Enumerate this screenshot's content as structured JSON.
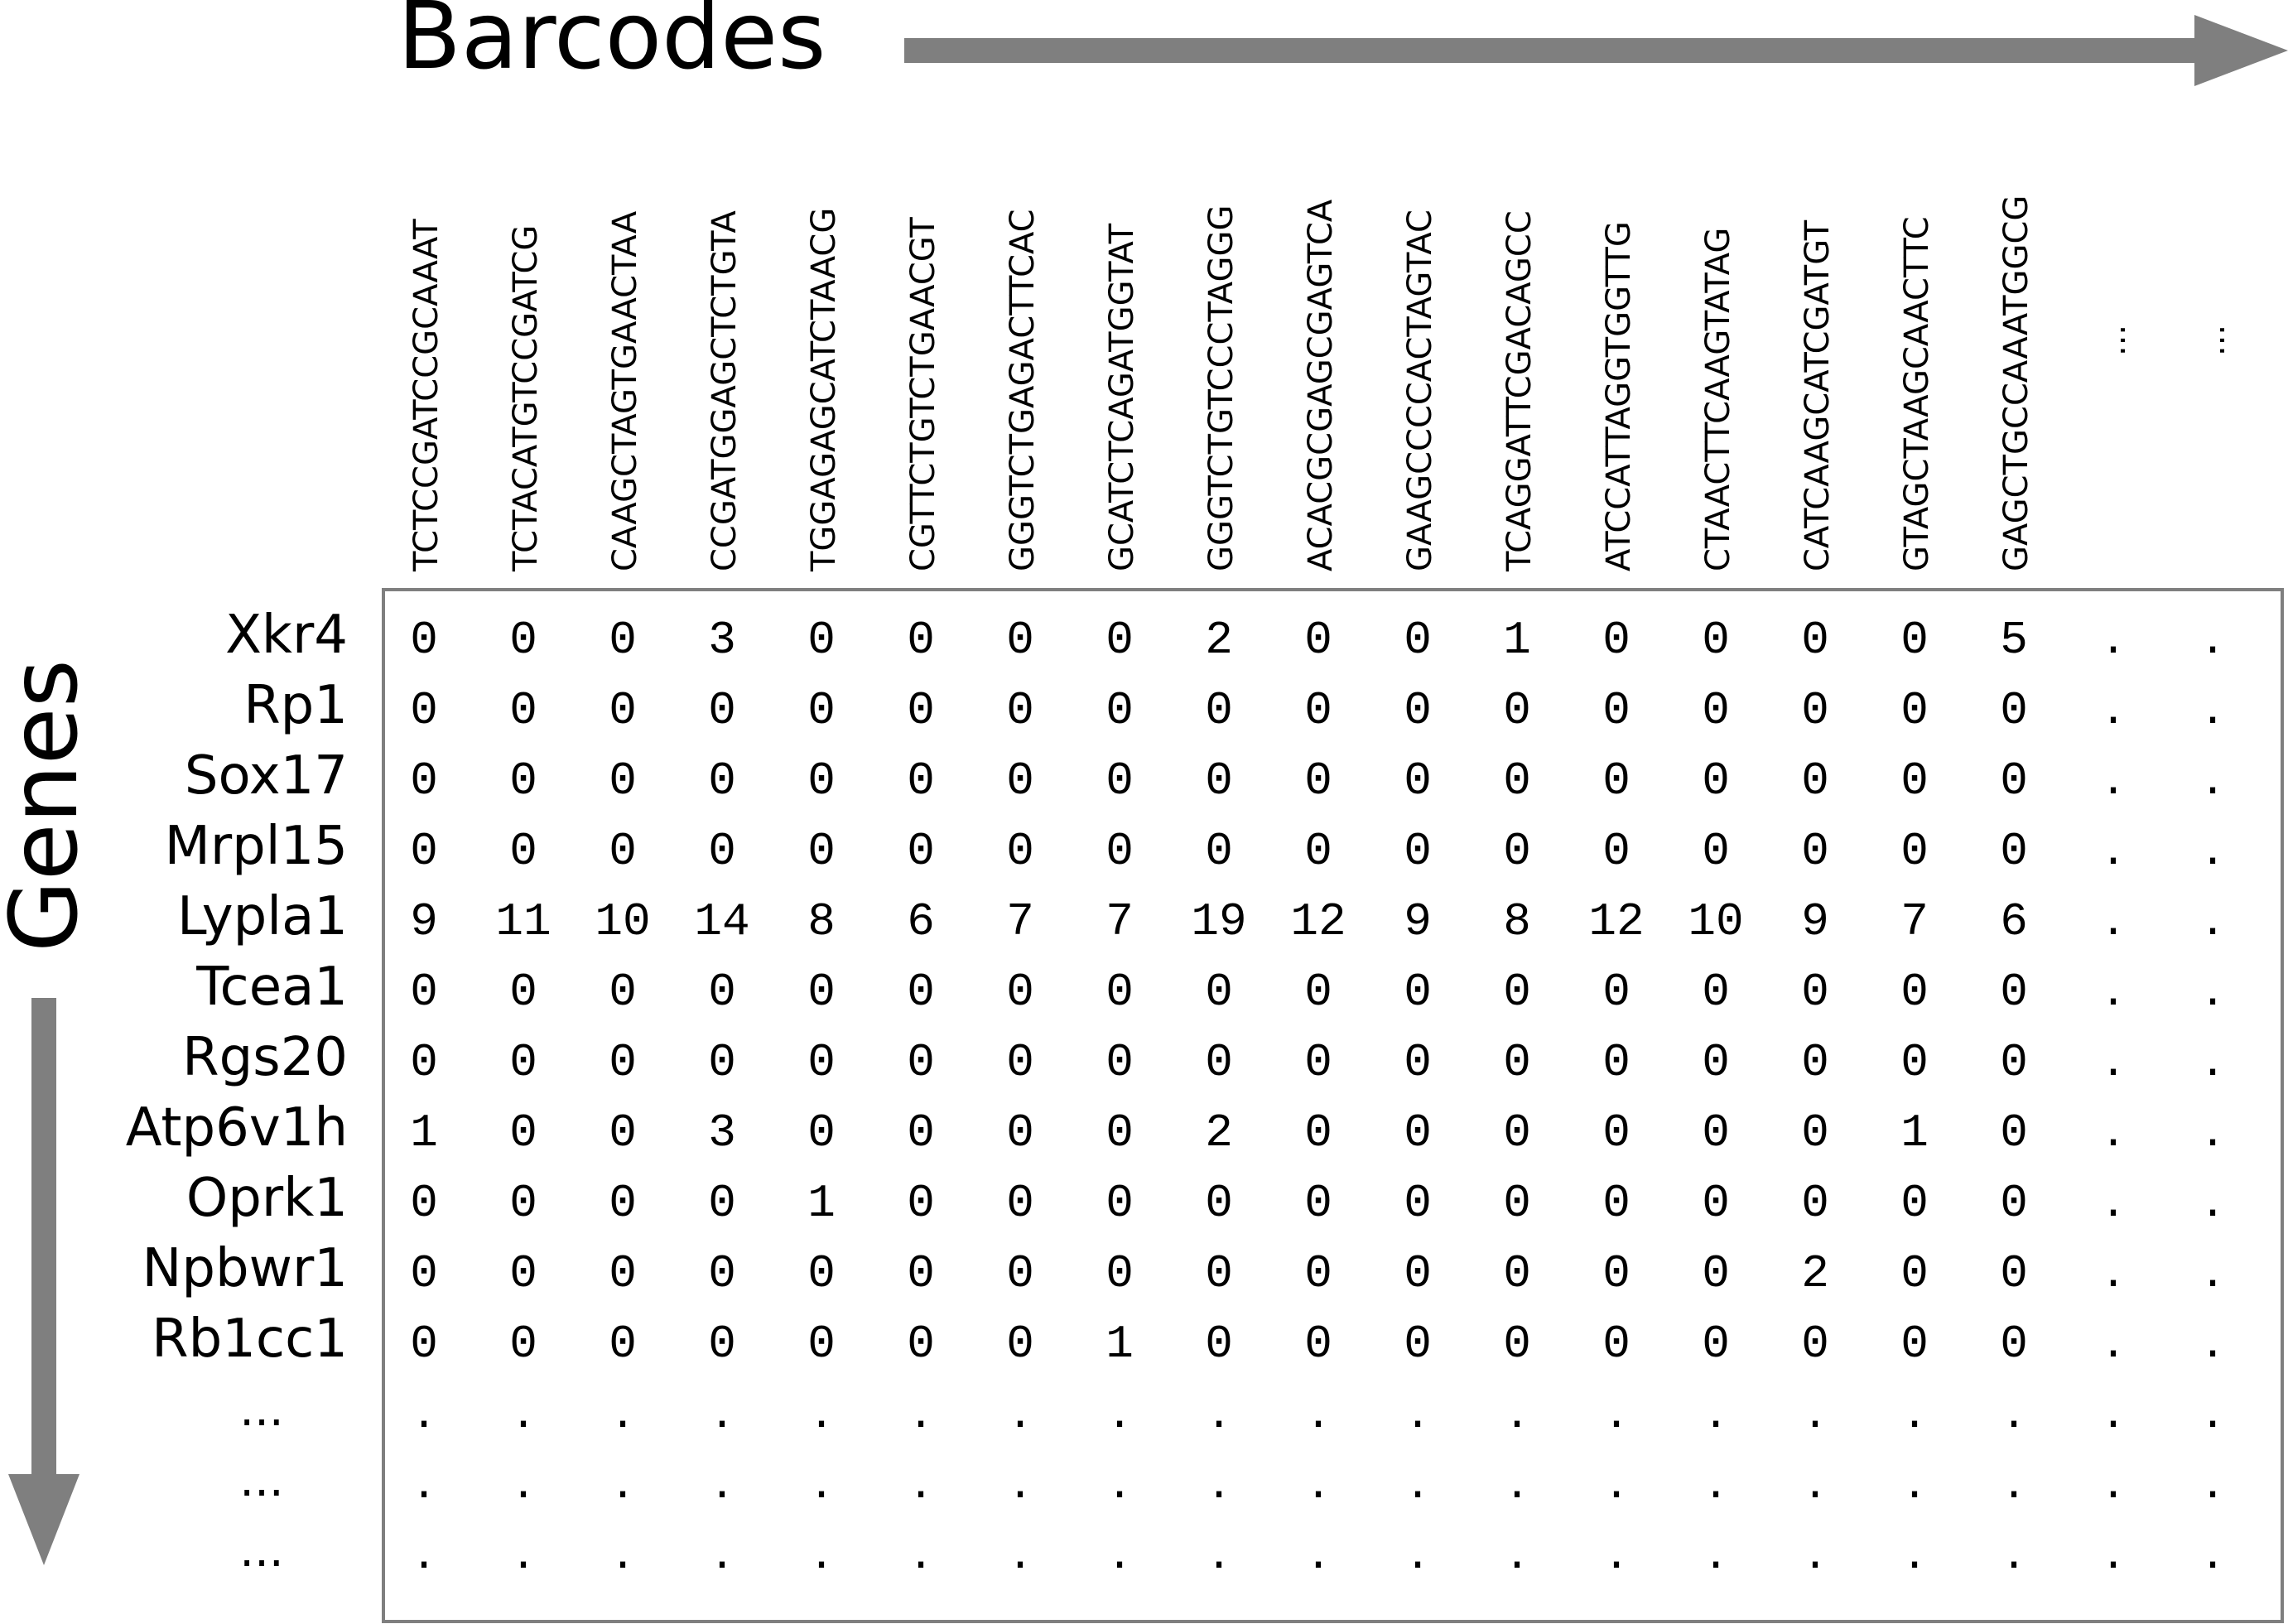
{
  "colors": {
    "arrow": "#7f7f7f",
    "frame": "#7f7f7f",
    "text": "#000000"
  },
  "axes": {
    "column_axis_label": "Barcodes",
    "row_axis_label": "Genes"
  },
  "barcodes": [
    "TCTCCGATCCGCAAAT",
    "TCTACATGTCCGATCG",
    "CAAGCTAGTGAACTAA",
    "CCGATGGAGCTCTGTA",
    "TGGAGAGCATCTAACG",
    "CGTTCTGTCTGAACGT",
    "GGGTCTGAGACTTCAC",
    "GCATCTCAGATGGTAT",
    "GGGTCTGTCCCTAGGG",
    "ACACGCGAGCGAGTCA",
    "GAAGCCCCACTAGTAC",
    "TCAGGATTCGACAGCC",
    "ATCCATTAGGTGGTTG",
    "CTAACTTCAAGTATAG",
    "CATCAAGCATCGATGT",
    "GTAGCTAAGCAACTTC",
    "GAGCTGCCAAATGGCG"
  ],
  "barcode_ellipsis": [
    "...",
    "..."
  ],
  "genes": [
    "Xkr4",
    "Rp1",
    "Sox17",
    "Mrpl15",
    "Lypla1",
    "Tcea1",
    "Rgs20",
    "Atp6v1h",
    "Oprk1",
    "Npbwr1",
    "Rb1cc1"
  ],
  "gene_ellipsis": [
    "...",
    "...",
    "..."
  ],
  "counts": [
    [
      0,
      0,
      0,
      3,
      0,
      0,
      0,
      0,
      2,
      0,
      0,
      1,
      0,
      0,
      0,
      0,
      5
    ],
    [
      0,
      0,
      0,
      0,
      0,
      0,
      0,
      0,
      0,
      0,
      0,
      0,
      0,
      0,
      0,
      0,
      0
    ],
    [
      0,
      0,
      0,
      0,
      0,
      0,
      0,
      0,
      0,
      0,
      0,
      0,
      0,
      0,
      0,
      0,
      0
    ],
    [
      0,
      0,
      0,
      0,
      0,
      0,
      0,
      0,
      0,
      0,
      0,
      0,
      0,
      0,
      0,
      0,
      0
    ],
    [
      9,
      11,
      10,
      14,
      8,
      6,
      7,
      7,
      19,
      12,
      9,
      8,
      12,
      10,
      9,
      7,
      6
    ],
    [
      0,
      0,
      0,
      0,
      0,
      0,
      0,
      0,
      0,
      0,
      0,
      0,
      0,
      0,
      0,
      0,
      0
    ],
    [
      0,
      0,
      0,
      0,
      0,
      0,
      0,
      0,
      0,
      0,
      0,
      0,
      0,
      0,
      0,
      0,
      0
    ],
    [
      1,
      0,
      0,
      3,
      0,
      0,
      0,
      0,
      2,
      0,
      0,
      0,
      0,
      0,
      0,
      1,
      0
    ],
    [
      0,
      0,
      0,
      0,
      1,
      0,
      0,
      0,
      0,
      0,
      0,
      0,
      0,
      0,
      0,
      0,
      0
    ],
    [
      0,
      0,
      0,
      0,
      0,
      0,
      0,
      0,
      0,
      0,
      0,
      0,
      0,
      0,
      2,
      0,
      0
    ],
    [
      0,
      0,
      0,
      0,
      0,
      0,
      0,
      1,
      0,
      0,
      0,
      0,
      0,
      0,
      0,
      0,
      0
    ]
  ],
  "truncation_mark": "."
}
